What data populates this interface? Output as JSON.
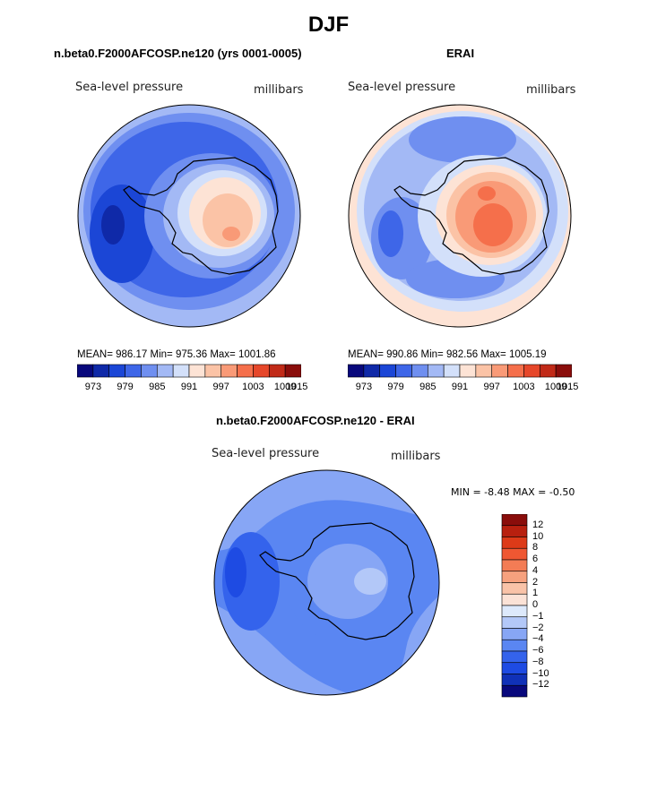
{
  "title": "DJF",
  "colors": {
    "abs_palette": [
      "#08087c",
      "#0f29a8",
      "#1b46d6",
      "#3e66e8",
      "#6f8ff0",
      "#a3b9f5",
      "#d3e0fa",
      "#fde3d5",
      "#fbc3a6",
      "#f99a77",
      "#f56f4b",
      "#e6472a",
      "#c12a18",
      "#8a0d0b"
    ],
    "diff_palette": [
      "#08087c",
      "#1031b8",
      "#1e4be3",
      "#3463ec",
      "#5a86f2",
      "#87a6f5",
      "#b3c8f8",
      "#dde9fb",
      "#fbe2d6",
      "#f9c3a8",
      "#f6a17e",
      "#f37c55",
      "#ef5732",
      "#dd3a18",
      "#b8200f",
      "#8a0d0b"
    ],
    "coast": "#000000"
  },
  "panels": {
    "left": {
      "title": "n.beta0.F2000AFCOSP.ne120 (yrs 0001-0005)",
      "subtitle_left": "Sea-level pressure",
      "subtitle_right": "millibars",
      "stats": "MEAN= 986.17   Min= 975.36   Max= 1001.86"
    },
    "right": {
      "title": "ERAI",
      "subtitle_left": "Sea-level pressure",
      "subtitle_right": "millibars",
      "stats": "MEAN= 990.86   Min= 982.56   Max= 1005.19"
    },
    "diff": {
      "title": "n.beta0.F2000AFCOSP.ne120 - ERAI",
      "subtitle_left": "Sea-level pressure",
      "subtitle_right": "millibars",
      "stats": "MIN =  -8.48  MAX =  -0.50"
    }
  },
  "chart_data": [
    {
      "type": "heatmap",
      "title": "n.beta0.F2000AFCOSP.ne120 (yrs 0001-0005)",
      "projection": "south polar stereographic",
      "variable": "Sea-level pressure",
      "units": "millibars",
      "mean": 986.17,
      "min": 975.36,
      "max": 1001.86,
      "contour_levels": [
        973,
        976,
        979,
        982,
        985,
        988,
        991,
        994,
        997,
        1000,
        1003,
        1006,
        1009,
        1012,
        1015
      ],
      "colorbar_ticks": [
        "973",
        "979",
        "985",
        "991",
        "997",
        "1003",
        "1009",
        "1015"
      ]
    },
    {
      "type": "heatmap",
      "title": "ERAI",
      "projection": "south polar stereographic",
      "variable": "Sea-level pressure",
      "units": "millibars",
      "mean": 990.86,
      "min": 982.56,
      "max": 1005.19,
      "contour_levels": [
        973,
        976,
        979,
        982,
        985,
        988,
        991,
        994,
        997,
        1000,
        1003,
        1006,
        1009,
        1012,
        1015
      ],
      "colorbar_ticks": [
        "973",
        "979",
        "985",
        "991",
        "997",
        "1003",
        "1009",
        "1015"
      ]
    },
    {
      "type": "heatmap",
      "title": "n.beta0.F2000AFCOSP.ne120 - ERAI",
      "projection": "south polar stereographic",
      "variable": "Sea-level pressure",
      "units": "millibars",
      "min": -8.48,
      "max": -0.5,
      "contour_levels": [
        -12,
        -10,
        -8,
        -6,
        -4,
        -2,
        -1,
        0,
        1,
        2,
        4,
        6,
        8,
        10,
        12
      ],
      "colorbar_ticks": [
        "12",
        "10",
        "8",
        "6",
        "4",
        "2",
        "1",
        "0",
        "−1",
        "−2",
        "−4",
        "−6",
        "−8",
        "−10",
        "−12"
      ]
    }
  ]
}
